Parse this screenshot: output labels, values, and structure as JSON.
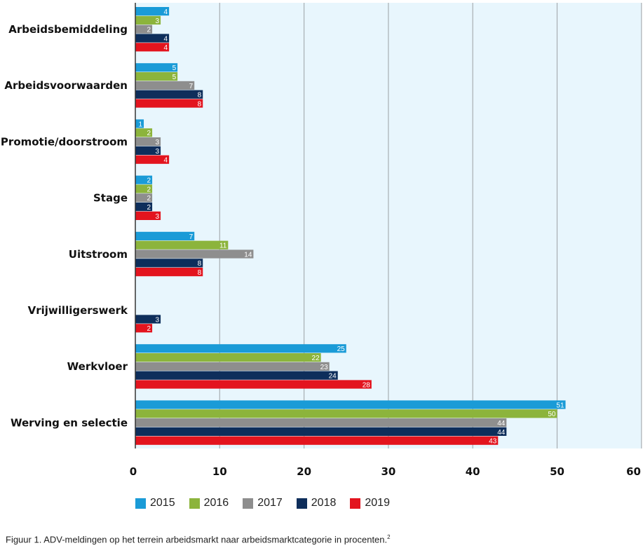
{
  "chart_data": {
    "type": "bar",
    "orientation": "horizontal",
    "categories": [
      "Arbeidsbemiddeling",
      "Arbeidsvoorwaarden",
      "Promotie/doorstroom",
      "Stage",
      "Uitstroom",
      "Vrijwilligerswerk",
      "Werkvloer",
      "Werving en selectie"
    ],
    "series": [
      {
        "name": "2015",
        "color": "#1a9bd7",
        "values": [
          4,
          5,
          1,
          2,
          7,
          null,
          25,
          51
        ]
      },
      {
        "name": "2016",
        "color": "#8cb43c",
        "values": [
          3,
          5,
          2,
          2,
          11,
          null,
          22,
          50
        ]
      },
      {
        "name": "2017",
        "color": "#8e8e8e",
        "values": [
          2,
          7,
          3,
          2,
          14,
          null,
          23,
          44
        ]
      },
      {
        "name": "2018",
        "color": "#0e2e5b",
        "values": [
          4,
          8,
          3,
          2,
          8,
          3,
          24,
          44
        ]
      },
      {
        "name": "2019",
        "color": "#e3141e",
        "values": [
          4,
          8,
          4,
          3,
          8,
          2,
          28,
          43
        ]
      }
    ],
    "xlim": [
      0,
      60
    ],
    "xticks": [
      "0",
      "10",
      "20",
      "30",
      "40",
      "50",
      "60"
    ],
    "grid": true,
    "plot_background": "#e8f6fd",
    "legend_position": "bottom"
  },
  "caption": {
    "text": "Figuur 1. ADV-meldingen op het terrein arbeidsmarkt naar arbeidsmarktcategorie in procenten.",
    "footnote": "2"
  }
}
